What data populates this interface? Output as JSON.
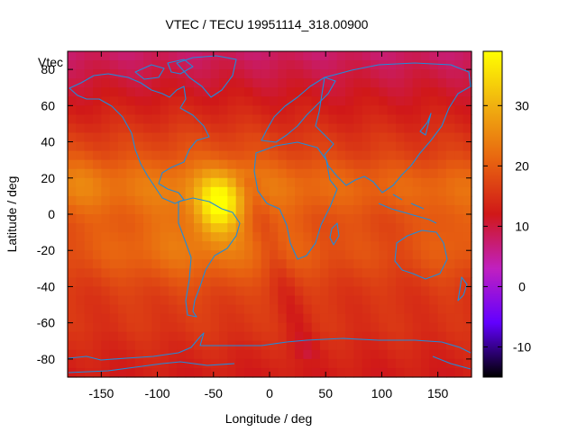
{
  "chart_data": {
    "type": "heatmap",
    "title": "VTEC / TECU 19951114_318.00900",
    "xlabel": "Longitude / deg",
    "ylabel": "Latitude / deg",
    "inset_label": "Vtec",
    "xlim": [
      -180,
      180
    ],
    "ylim": [
      -90,
      90
    ],
    "x_ticks": [
      -150,
      -100,
      -50,
      0,
      50,
      100,
      150
    ],
    "y_ticks": [
      -80,
      -60,
      -40,
      -20,
      0,
      20,
      40,
      60,
      80
    ],
    "colorbar": {
      "range": [
        -15,
        39
      ],
      "ticks": [
        -10,
        0,
        10,
        20,
        30
      ],
      "palette": [
        "#000000",
        "#6200ff",
        "#c020c0",
        "#d01818",
        "#e86410",
        "#f0b010",
        "#ffff00"
      ]
    },
    "grid": false,
    "legend": "colorbar-right",
    "features": {
      "background_vtec": 15,
      "polar_cap_vtec": 9,
      "peak": {
        "lon": -45,
        "lat": 5,
        "vtec": 37
      },
      "crest_north": {
        "lat": 15,
        "vtec": 22
      },
      "crest_south": {
        "lat": -20,
        "vtec": 20
      },
      "coastline_color": "#1e8cdc"
    }
  }
}
